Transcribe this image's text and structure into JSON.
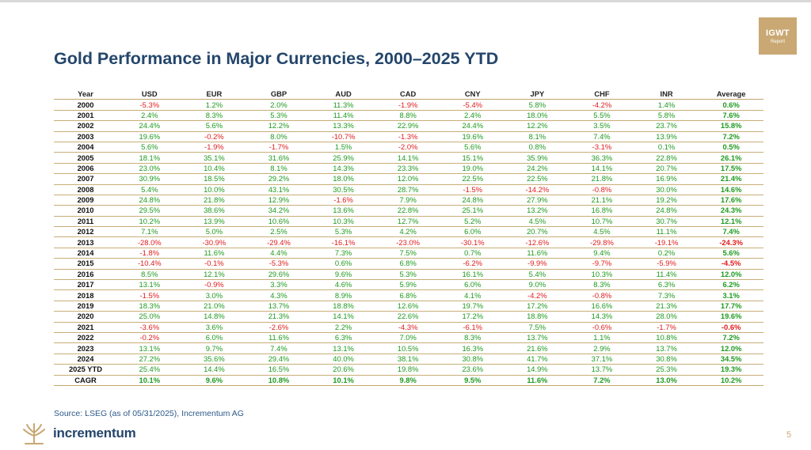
{
  "brand_badge": {
    "line1": "IGWT",
    "line2": "Report"
  },
  "title": "Gold Performance in Major Currencies, 2000–2025 YTD",
  "table": {
    "headers": [
      "Year",
      "USD",
      "EUR",
      "GBP",
      "AUD",
      "CAD",
      "CNY",
      "JPY",
      "CHF",
      "INR",
      "Average"
    ],
    "rows": [
      [
        "2000",
        "-5.3%",
        "1.2%",
        "2.0%",
        "11.3%",
        "-1.9%",
        "-5.4%",
        "5.8%",
        "-4.2%",
        "1.4%",
        "0.6%"
      ],
      [
        "2001",
        "2.4%",
        "8.3%",
        "5.3%",
        "11.4%",
        "8.8%",
        "2.4%",
        "18.0%",
        "5.5%",
        "5.8%",
        "7.6%"
      ],
      [
        "2002",
        "24.4%",
        "5.6%",
        "12.2%",
        "13.3%",
        "22.9%",
        "24.4%",
        "12.2%",
        "3.5%",
        "23.7%",
        "15.8%"
      ],
      [
        "2003",
        "19.6%",
        "-0.2%",
        "8.0%",
        "-10.7%",
        "-1.3%",
        "19.6%",
        "8.1%",
        "7.4%",
        "13.9%",
        "7.2%"
      ],
      [
        "2004",
        "5.6%",
        "-1.9%",
        "-1.7%",
        "1.5%",
        "-2.0%",
        "5.6%",
        "0.8%",
        "-3.1%",
        "0.1%",
        "0.5%"
      ],
      [
        "2005",
        "18.1%",
        "35.1%",
        "31.6%",
        "25.9%",
        "14.1%",
        "15.1%",
        "35.9%",
        "36.3%",
        "22.8%",
        "26.1%"
      ],
      [
        "2006",
        "23.0%",
        "10.4%",
        "8.1%",
        "14.3%",
        "23.3%",
        "19.0%",
        "24.2%",
        "14.1%",
        "20.7%",
        "17.5%"
      ],
      [
        "2007",
        "30.9%",
        "18.5%",
        "29.2%",
        "18.0%",
        "12.0%",
        "22.5%",
        "22.5%",
        "21.8%",
        "16.9%",
        "21.4%"
      ],
      [
        "2008",
        "5.4%",
        "10.0%",
        "43.1%",
        "30.5%",
        "28.7%",
        "-1.5%",
        "-14.2%",
        "-0.8%",
        "30.0%",
        "14.6%"
      ],
      [
        "2009",
        "24.8%",
        "21.8%",
        "12.9%",
        "-1.6%",
        "7.9%",
        "24.8%",
        "27.9%",
        "21.1%",
        "19.2%",
        "17.6%"
      ],
      [
        "2010",
        "29.5%",
        "38.6%",
        "34.2%",
        "13.6%",
        "22.8%",
        "25.1%",
        "13.2%",
        "16.8%",
        "24.8%",
        "24.3%"
      ],
      [
        "2011",
        "10.2%",
        "13.9%",
        "10.6%",
        "10.3%",
        "12.7%",
        "5.2%",
        "4.5%",
        "10.7%",
        "30.7%",
        "12.1%"
      ],
      [
        "2012",
        "7.1%",
        "5.0%",
        "2.5%",
        "5.3%",
        "4.2%",
        "6.0%",
        "20.7%",
        "4.5%",
        "11.1%",
        "7.4%"
      ],
      [
        "2013",
        "-28.0%",
        "-30.9%",
        "-29.4%",
        "-16.1%",
        "-23.0%",
        "-30.1%",
        "-12.6%",
        "-29.8%",
        "-19.1%",
        "-24.3%"
      ],
      [
        "2014",
        "-1.8%",
        "11.6%",
        "4.4%",
        "7.3%",
        "7.5%",
        "0.7%",
        "11.6%",
        "9.4%",
        "0.2%",
        "5.6%"
      ],
      [
        "2015",
        "-10.4%",
        "-0.1%",
        "-5.3%",
        "0.6%",
        "6.8%",
        "-6.2%",
        "-9.9%",
        "-9.7%",
        "-5.9%",
        "-4.5%"
      ],
      [
        "2016",
        "8.5%",
        "12.1%",
        "29.6%",
        "9.6%",
        "5.3%",
        "16.1%",
        "5.4%",
        "10.3%",
        "11.4%",
        "12.0%"
      ],
      [
        "2017",
        "13.1%",
        "-0.9%",
        "3.3%",
        "4.6%",
        "5.9%",
        "6.0%",
        "9.0%",
        "8.3%",
        "6.3%",
        "6.2%"
      ],
      [
        "2018",
        "-1.5%",
        "3.0%",
        "4.3%",
        "8.9%",
        "6.8%",
        "4.1%",
        "-4.2%",
        "-0.8%",
        "7.3%",
        "3.1%"
      ],
      [
        "2019",
        "18.3%",
        "21.0%",
        "13.7%",
        "18.8%",
        "12.6%",
        "19.7%",
        "17.2%",
        "16.6%",
        "21.3%",
        "17.7%"
      ],
      [
        "2020",
        "25.0%",
        "14.8%",
        "21.3%",
        "14.1%",
        "22.6%",
        "17.2%",
        "18.8%",
        "14.3%",
        "28.0%",
        "19.6%"
      ],
      [
        "2021",
        "-3.6%",
        "3.6%",
        "-2.6%",
        "2.2%",
        "-4.3%",
        "-6.1%",
        "7.5%",
        "-0.6%",
        "-1.7%",
        "-0.6%"
      ],
      [
        "2022",
        "-0.2%",
        "6.0%",
        "11.6%",
        "6.3%",
        "7.0%",
        "8.3%",
        "13.7%",
        "1.1%",
        "10.8%",
        "7.2%"
      ],
      [
        "2023",
        "13.1%",
        "9.7%",
        "7.4%",
        "13.1%",
        "10.5%",
        "16.3%",
        "21.6%",
        "2.9%",
        "13.7%",
        "12.0%"
      ],
      [
        "2024",
        "27.2%",
        "35.6%",
        "29.4%",
        "40.0%",
        "38.1%",
        "30.8%",
        "41.7%",
        "37.1%",
        "30.8%",
        "34.5%"
      ],
      [
        "2025 YTD",
        "25.4%",
        "14.4%",
        "16.5%",
        "20.6%",
        "19.8%",
        "23.6%",
        "14.9%",
        "13.7%",
        "25.3%",
        "19.3%"
      ],
      [
        "CAGR",
        "10.1%",
        "9.6%",
        "10.8%",
        "10.1%",
        "9.8%",
        "9.5%",
        "11.6%",
        "7.2%",
        "13.0%",
        "10.2%"
      ]
    ]
  },
  "source": "Source: LSEG (as of 05/31/2025), Incrementum AG",
  "footer": {
    "logo_text": "incrementum",
    "page_number": "5"
  },
  "colors": {
    "positive": "#1f9a1f",
    "negative": "#e01b1b",
    "title": "#24466b",
    "gold": "#c9a873"
  }
}
